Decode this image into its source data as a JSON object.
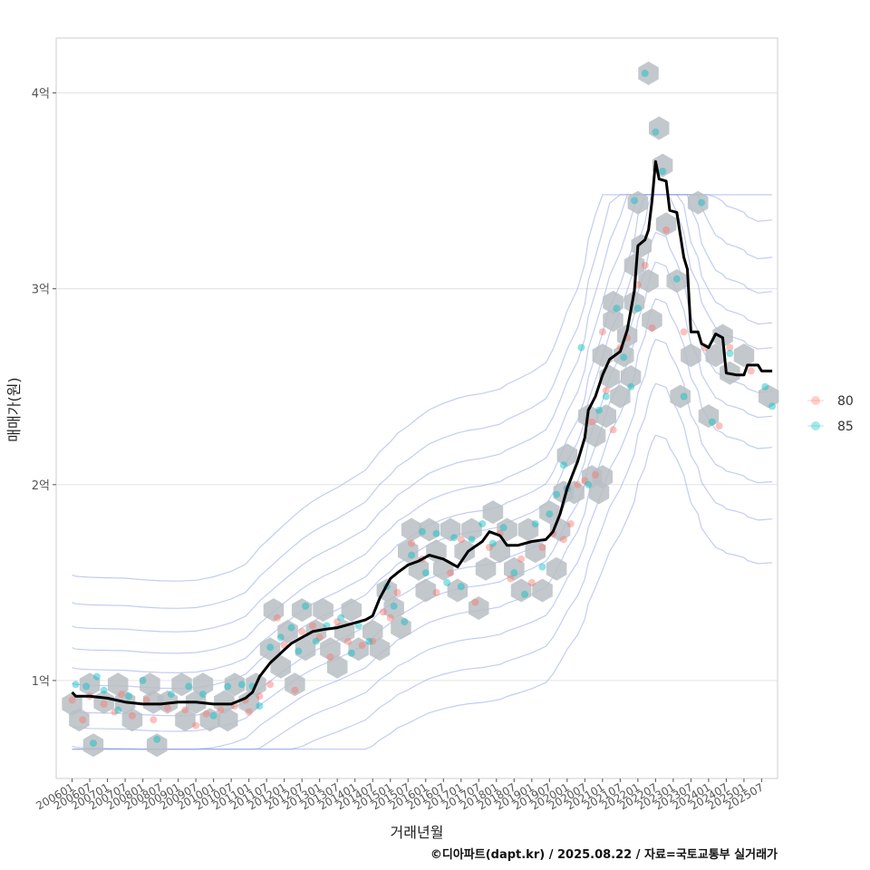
{
  "chart_data": {
    "type": "scatter",
    "xlabel": "거래년월",
    "ylabel": "매매가(원)",
    "caption": "©디아파트(dapt.kr) / 2025.08.22 / 자료=국토교통부 실거래가",
    "x_ticks": [
      "200601",
      "200607",
      "200701",
      "200707",
      "200801",
      "200807",
      "200901",
      "200907",
      "201001",
      "201007",
      "201101",
      "201107",
      "201201",
      "201207",
      "201301",
      "201307",
      "201401",
      "201407",
      "201501",
      "201507",
      "201601",
      "201607",
      "201701",
      "201707",
      "201801",
      "201807",
      "201901",
      "201907",
      "202001",
      "202007",
      "202101",
      "202107",
      "202201",
      "202207",
      "202301",
      "202307",
      "202401",
      "202407",
      "202501",
      "202507"
    ],
    "y_ticks": [
      {
        "value": 1,
        "label": "1억"
      },
      {
        "value": 2,
        "label": "2억"
      },
      {
        "value": 3,
        "label": "3억"
      },
      {
        "value": 4,
        "label": "4억"
      }
    ],
    "ylim": [
      0.5,
      4.28
    ],
    "xlim": [
      2005.55,
      2025.95
    ],
    "grid": true,
    "legend": {
      "position": "right",
      "entries": [
        {
          "label": "80",
          "color": "#F8766D"
        },
        {
          "label": "85",
          "color": "#00BFC4"
        }
      ]
    },
    "colors": {
      "hex": "#b8bec4",
      "trend": "#000000",
      "contour": "#8fa4e8",
      "grid": "#e3e3e3"
    },
    "trend_line": [
      [
        2006.0,
        0.94
      ],
      [
        2006.1,
        0.92
      ],
      [
        2006.5,
        0.92
      ],
      [
        2007.0,
        0.91
      ],
      [
        2007.5,
        0.89
      ],
      [
        2008.0,
        0.88
      ],
      [
        2008.5,
        0.88
      ],
      [
        2009.0,
        0.89
      ],
      [
        2009.5,
        0.89
      ],
      [
        2010.0,
        0.88
      ],
      [
        2010.5,
        0.88
      ],
      [
        2010.9,
        0.91
      ],
      [
        2011.1,
        0.94
      ],
      [
        2011.3,
        1.02
      ],
      [
        2011.6,
        1.09
      ],
      [
        2011.9,
        1.14
      ],
      [
        2012.2,
        1.19
      ],
      [
        2012.5,
        1.22
      ],
      [
        2012.8,
        1.25
      ],
      [
        2013.1,
        1.26
      ],
      [
        2013.5,
        1.27
      ],
      [
        2013.9,
        1.29
      ],
      [
        2014.3,
        1.31
      ],
      [
        2014.5,
        1.33
      ],
      [
        2014.7,
        1.42
      ],
      [
        2015.0,
        1.52
      ],
      [
        2015.2,
        1.55
      ],
      [
        2015.5,
        1.59
      ],
      [
        2015.8,
        1.61
      ],
      [
        2016.1,
        1.64
      ],
      [
        2016.5,
        1.62
      ],
      [
        2016.9,
        1.58
      ],
      [
        2017.2,
        1.66
      ],
      [
        2017.6,
        1.71
      ],
      [
        2017.8,
        1.76
      ],
      [
        2018.1,
        1.74
      ],
      [
        2018.3,
        1.69
      ],
      [
        2018.6,
        1.69
      ],
      [
        2019.0,
        1.71
      ],
      [
        2019.4,
        1.72
      ],
      [
        2019.6,
        1.76
      ],
      [
        2019.8,
        1.85
      ],
      [
        2020.0,
        1.98
      ],
      [
        2020.3,
        2.12
      ],
      [
        2020.5,
        2.24
      ],
      [
        2020.6,
        2.38
      ],
      [
        2020.8,
        2.45
      ],
      [
        2021.0,
        2.56
      ],
      [
        2021.2,
        2.64
      ],
      [
        2021.5,
        2.68
      ],
      [
        2021.7,
        2.79
      ],
      [
        2021.9,
        2.99
      ],
      [
        2022.0,
        3.22
      ],
      [
        2022.2,
        3.25
      ],
      [
        2022.3,
        3.3
      ],
      [
        2022.4,
        3.45
      ],
      [
        2022.5,
        3.65
      ],
      [
        2022.6,
        3.56
      ],
      [
        2022.8,
        3.55
      ],
      [
        2022.9,
        3.4
      ],
      [
        2023.1,
        3.39
      ],
      [
        2023.3,
        3.16
      ],
      [
        2023.4,
        3.1
      ],
      [
        2023.5,
        2.78
      ],
      [
        2023.7,
        2.78
      ],
      [
        2023.8,
        2.72
      ],
      [
        2024.0,
        2.7
      ],
      [
        2024.2,
        2.77
      ],
      [
        2024.4,
        2.75
      ],
      [
        2024.5,
        2.57
      ],
      [
        2024.8,
        2.56
      ],
      [
        2025.0,
        2.56
      ],
      [
        2025.1,
        2.61
      ],
      [
        2025.4,
        2.61
      ],
      [
        2025.5,
        2.58
      ],
      [
        2025.8,
        2.58
      ]
    ],
    "hex_bins": [
      [
        2006.0,
        0.88
      ],
      [
        2006.2,
        0.8
      ],
      [
        2006.5,
        0.98
      ],
      [
        2006.6,
        0.67
      ],
      [
        2006.9,
        0.89
      ],
      [
        2007.3,
        0.98
      ],
      [
        2007.5,
        0.89
      ],
      [
        2007.7,
        0.8
      ],
      [
        2008.2,
        0.98
      ],
      [
        2008.3,
        0.89
      ],
      [
        2008.4,
        0.67
      ],
      [
        2008.7,
        0.89
      ],
      [
        2009.1,
        0.98
      ],
      [
        2009.2,
        0.8
      ],
      [
        2009.5,
        0.89
      ],
      [
        2009.7,
        0.98
      ],
      [
        2009.9,
        0.8
      ],
      [
        2010.3,
        0.89
      ],
      [
        2010.4,
        0.8
      ],
      [
        2010.6,
        0.98
      ],
      [
        2011.0,
        0.89
      ],
      [
        2011.2,
        0.98
      ],
      [
        2011.6,
        1.16
      ],
      [
        2011.7,
        1.36
      ],
      [
        2011.9,
        1.07
      ],
      [
        2012.1,
        1.25
      ],
      [
        2012.3,
        0.98
      ],
      [
        2012.5,
        1.36
      ],
      [
        2012.6,
        1.16
      ],
      [
        2012.9,
        1.25
      ],
      [
        2013.1,
        1.36
      ],
      [
        2013.3,
        1.16
      ],
      [
        2013.5,
        1.07
      ],
      [
        2013.7,
        1.25
      ],
      [
        2013.9,
        1.36
      ],
      [
        2014.1,
        1.16
      ],
      [
        2014.5,
        1.25
      ],
      [
        2014.7,
        1.16
      ],
      [
        2014.9,
        1.46
      ],
      [
        2015.1,
        1.37
      ],
      [
        2015.3,
        1.27
      ],
      [
        2015.5,
        1.66
      ],
      [
        2015.6,
        1.77
      ],
      [
        2015.8,
        1.57
      ],
      [
        2016.0,
        1.46
      ],
      [
        2016.1,
        1.77
      ],
      [
        2016.3,
        1.66
      ],
      [
        2016.5,
        1.57
      ],
      [
        2016.7,
        1.77
      ],
      [
        2016.9,
        1.46
      ],
      [
        2017.1,
        1.66
      ],
      [
        2017.3,
        1.77
      ],
      [
        2017.5,
        1.37
      ],
      [
        2017.7,
        1.57
      ],
      [
        2017.9,
        1.86
      ],
      [
        2018.1,
        1.66
      ],
      [
        2018.3,
        1.77
      ],
      [
        2018.5,
        1.57
      ],
      [
        2018.7,
        1.46
      ],
      [
        2018.9,
        1.77
      ],
      [
        2019.1,
        1.66
      ],
      [
        2019.3,
        1.46
      ],
      [
        2019.5,
        1.86
      ],
      [
        2019.7,
        1.57
      ],
      [
        2019.8,
        1.77
      ],
      [
        2019.9,
        1.96
      ],
      [
        2020.0,
        2.15
      ],
      [
        2020.2,
        1.96
      ],
      [
        2020.6,
        2.35
      ],
      [
        2020.7,
        2.04
      ],
      [
        2020.8,
        2.25
      ],
      [
        2020.9,
        1.96
      ],
      [
        2021.0,
        2.04
      ],
      [
        2021.0,
        2.66
      ],
      [
        2021.1,
        2.35
      ],
      [
        2021.2,
        2.55
      ],
      [
        2021.3,
        2.84
      ],
      [
        2021.3,
        2.93
      ],
      [
        2021.5,
        2.45
      ],
      [
        2021.6,
        2.66
      ],
      [
        2021.7,
        2.76
      ],
      [
        2021.8,
        2.55
      ],
      [
        2021.9,
        3.12
      ],
      [
        2021.9,
        2.93
      ],
      [
        2022.0,
        3.44
      ],
      [
        2022.1,
        3.22
      ],
      [
        2022.3,
        3.04
      ],
      [
        2022.4,
        2.84
      ],
      [
        2022.6,
        3.82
      ],
      [
        2022.7,
        3.63
      ],
      [
        2022.8,
        3.33
      ],
      [
        2023.1,
        3.04
      ],
      [
        2023.2,
        2.45
      ],
      [
        2023.5,
        2.66
      ],
      [
        2023.7,
        3.44
      ],
      [
        2024.0,
        2.35
      ],
      [
        2024.2,
        2.66
      ],
      [
        2024.4,
        2.76
      ],
      [
        2024.6,
        2.57
      ],
      [
        2025.0,
        2.66
      ],
      [
        2025.7,
        2.45
      ],
      [
        2022.3,
        4.1
      ]
    ],
    "series": [
      {
        "name": "80",
        "points": [
          [
            2006.0,
            0.9
          ],
          [
            2006.3,
            0.8
          ],
          [
            2006.5,
            0.92
          ],
          [
            2006.9,
            0.88
          ],
          [
            2007.2,
            0.84
          ],
          [
            2007.4,
            0.93
          ],
          [
            2007.7,
            0.82
          ],
          [
            2008.1,
            0.9
          ],
          [
            2008.3,
            0.8
          ],
          [
            2008.7,
            0.86
          ],
          [
            2009.2,
            0.85
          ],
          [
            2009.5,
            0.77
          ],
          [
            2009.8,
            0.83
          ],
          [
            2010.2,
            0.85
          ],
          [
            2010.6,
            0.87
          ],
          [
            2010.9,
            0.9
          ],
          [
            2011.0,
            0.84
          ],
          [
            2011.3,
            0.92
          ],
          [
            2011.6,
            0.98
          ],
          [
            2011.8,
            1.32
          ],
          [
            2012.0,
            1.18
          ],
          [
            2012.3,
            0.95
          ],
          [
            2012.5,
            1.25
          ],
          [
            2012.8,
            1.28
          ],
          [
            2013.0,
            1.22
          ],
          [
            2013.3,
            1.12
          ],
          [
            2013.5,
            1.3
          ],
          [
            2013.8,
            1.2
          ],
          [
            2014.2,
            1.18
          ],
          [
            2014.5,
            1.2
          ],
          [
            2014.8,
            1.35
          ],
          [
            2015.0,
            1.32
          ],
          [
            2015.2,
            1.45
          ],
          [
            2015.6,
            1.7
          ],
          [
            2015.9,
            1.62
          ],
          [
            2016.3,
            1.45
          ],
          [
            2016.7,
            1.55
          ],
          [
            2017.0,
            1.72
          ],
          [
            2017.4,
            1.4
          ],
          [
            2017.8,
            1.68
          ],
          [
            2018.1,
            1.75
          ],
          [
            2018.4,
            1.52
          ],
          [
            2018.7,
            1.62
          ],
          [
            2019.0,
            1.5
          ],
          [
            2019.3,
            1.68
          ],
          [
            2019.6,
            1.75
          ],
          [
            2019.9,
            1.72
          ],
          [
            2020.1,
            1.8
          ],
          [
            2020.3,
            2.0
          ],
          [
            2020.5,
            2.02
          ],
          [
            2020.7,
            2.32
          ],
          [
            2020.8,
            2.05
          ],
          [
            2021.0,
            2.78
          ],
          [
            2021.1,
            2.48
          ],
          [
            2021.3,
            2.28
          ],
          [
            2021.5,
            2.7
          ],
          [
            2021.7,
            2.75
          ],
          [
            2022.0,
            3.02
          ],
          [
            2022.2,
            3.12
          ],
          [
            2022.4,
            2.8
          ],
          [
            2022.8,
            3.3
          ],
          [
            2023.3,
            2.78
          ],
          [
            2023.9,
            2.7
          ],
          [
            2024.3,
            2.3
          ],
          [
            2024.6,
            2.7
          ],
          [
            2025.2,
            2.58
          ]
        ]
      },
      {
        "name": "85",
        "points": [
          [
            2006.1,
            0.98
          ],
          [
            2006.4,
            0.97
          ],
          [
            2006.6,
            0.68
          ],
          [
            2006.7,
            1.02
          ],
          [
            2006.9,
            0.95
          ],
          [
            2007.3,
            0.85
          ],
          [
            2007.6,
            0.92
          ],
          [
            2008.0,
            1.0
          ],
          [
            2008.4,
            0.7
          ],
          [
            2008.8,
            0.93
          ],
          [
            2009.3,
            0.97
          ],
          [
            2009.7,
            0.93
          ],
          [
            2010.0,
            0.82
          ],
          [
            2010.4,
            0.97
          ],
          [
            2010.8,
            0.98
          ],
          [
            2011.1,
            0.97
          ],
          [
            2011.3,
            0.87
          ],
          [
            2011.6,
            1.17
          ],
          [
            2011.9,
            1.22
          ],
          [
            2012.2,
            1.27
          ],
          [
            2012.4,
            1.15
          ],
          [
            2012.6,
            1.38
          ],
          [
            2012.9,
            1.2
          ],
          [
            2013.2,
            1.28
          ],
          [
            2013.6,
            1.32
          ],
          [
            2013.9,
            1.14
          ],
          [
            2014.1,
            1.28
          ],
          [
            2014.4,
            1.2
          ],
          [
            2014.9,
            1.48
          ],
          [
            2015.1,
            1.38
          ],
          [
            2015.4,
            1.3
          ],
          [
            2015.6,
            1.64
          ],
          [
            2015.9,
            1.76
          ],
          [
            2016.0,
            1.55
          ],
          [
            2016.3,
            1.75
          ],
          [
            2016.6,
            1.5
          ],
          [
            2016.8,
            1.73
          ],
          [
            2017.0,
            1.48
          ],
          [
            2017.3,
            1.72
          ],
          [
            2017.6,
            1.8
          ],
          [
            2017.9,
            1.7
          ],
          [
            2018.2,
            1.78
          ],
          [
            2018.5,
            1.55
          ],
          [
            2018.8,
            1.44
          ],
          [
            2019.1,
            1.8
          ],
          [
            2019.3,
            1.58
          ],
          [
            2019.5,
            1.85
          ],
          [
            2019.7,
            1.95
          ],
          [
            2019.9,
            2.1
          ],
          [
            2020.0,
            1.98
          ],
          [
            2020.4,
            2.7
          ],
          [
            2020.6,
            2.0
          ],
          [
            2020.9,
            2.38
          ],
          [
            2021.1,
            2.45
          ],
          [
            2021.4,
            2.9
          ],
          [
            2021.6,
            2.65
          ],
          [
            2021.8,
            2.5
          ],
          [
            2021.9,
            3.45
          ],
          [
            2022.0,
            2.9
          ],
          [
            2022.2,
            4.1
          ],
          [
            2022.5,
            3.8
          ],
          [
            2022.7,
            3.6
          ],
          [
            2023.1,
            3.05
          ],
          [
            2023.3,
            2.45
          ],
          [
            2023.8,
            3.44
          ],
          [
            2024.1,
            2.32
          ],
          [
            2024.6,
            2.67
          ],
          [
            2025.6,
            2.5
          ],
          [
            2025.8,
            2.4
          ]
        ]
      }
    ]
  }
}
